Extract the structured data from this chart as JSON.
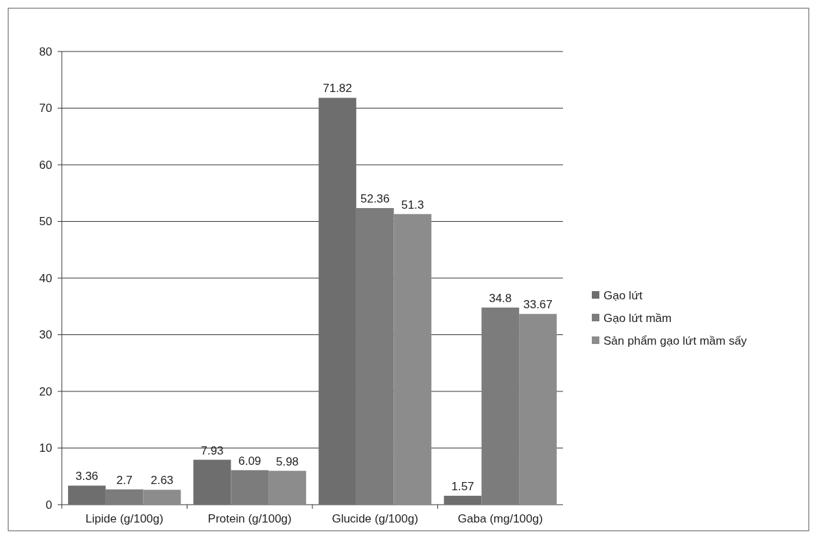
{
  "chart_data": {
    "type": "bar",
    "categories": [
      "Lipide (g/100g)",
      "Protein (g/100g)",
      "Glucide (g/100g)",
      "Gaba (mg/100g)"
    ],
    "series": [
      {
        "name": "Gạo lứt",
        "color": "#6e6e6e",
        "values": [
          3.36,
          7.93,
          71.82,
          1.57
        ]
      },
      {
        "name": "Gạo lứt mầm",
        "color": "#7c7c7c",
        "values": [
          2.7,
          6.09,
          52.36,
          34.8
        ]
      },
      {
        "name": "Sản phẩm gạo lứt mầm sấy",
        "color": "#8c8c8c",
        "values": [
          2.63,
          5.98,
          51.3,
          33.67
        ]
      }
    ],
    "ylim": [
      0,
      80
    ],
    "yticks": [
      0,
      10,
      20,
      30,
      40,
      50,
      60,
      70,
      80
    ],
    "grid": "y",
    "legend": "right",
    "data_labels": true
  }
}
